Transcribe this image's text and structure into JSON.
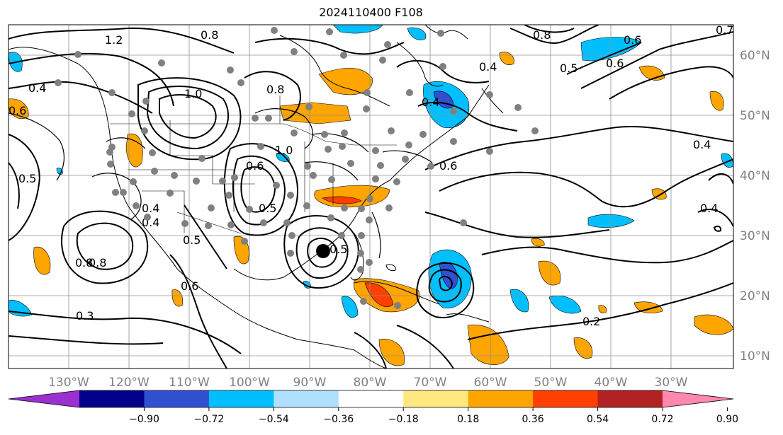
{
  "title": "2024110400 F108",
  "map": {
    "projection": "plate-carree",
    "lon_range": [
      -140,
      -20
    ],
    "lat_range": [
      7,
      65
    ],
    "lon_ticks": [
      "130°W",
      "120°W",
      "110°W",
      "100°W",
      "90°W",
      "80°W",
      "70°W",
      "60°W",
      "50°W",
      "40°W",
      "30°W"
    ],
    "lat_ticks": [
      "10°N",
      "20°N",
      "30°N",
      "40°N",
      "50°N",
      "60°N"
    ],
    "gridlines": true,
    "contour_labels": [
      "1.2",
      "0.8",
      "0.8",
      "1.0",
      "0.4",
      "0.6",
      "1.0",
      "0.8",
      "0.4",
      "0.5",
      "0.6",
      "0.4",
      "0.6",
      "0.5",
      "0.5",
      "0.8",
      "0.4",
      "0.5",
      "0.6",
      "0.3",
      "0.2",
      "0.4",
      "0.4",
      "0.7",
      "0.5",
      "0.6",
      "0.8",
      "0.4",
      "0.6"
    ],
    "storm_marker": "black-dot",
    "station_marker": "gray-dots"
  },
  "colorbar": {
    "ticks": [
      "−0.90",
      "−0.72",
      "−0.54",
      "−0.36",
      "−0.18",
      "0.18",
      "0.36",
      "0.54",
      "0.72",
      "0.90"
    ],
    "colors": [
      "#9b30d0",
      "#00008b",
      "#3050d0",
      "#00bfff",
      "#b0e0ff",
      "#ffffff",
      "#ffe880",
      "#ffa500",
      "#ff4000",
      "#b22222",
      "#ff88b0"
    ]
  }
}
